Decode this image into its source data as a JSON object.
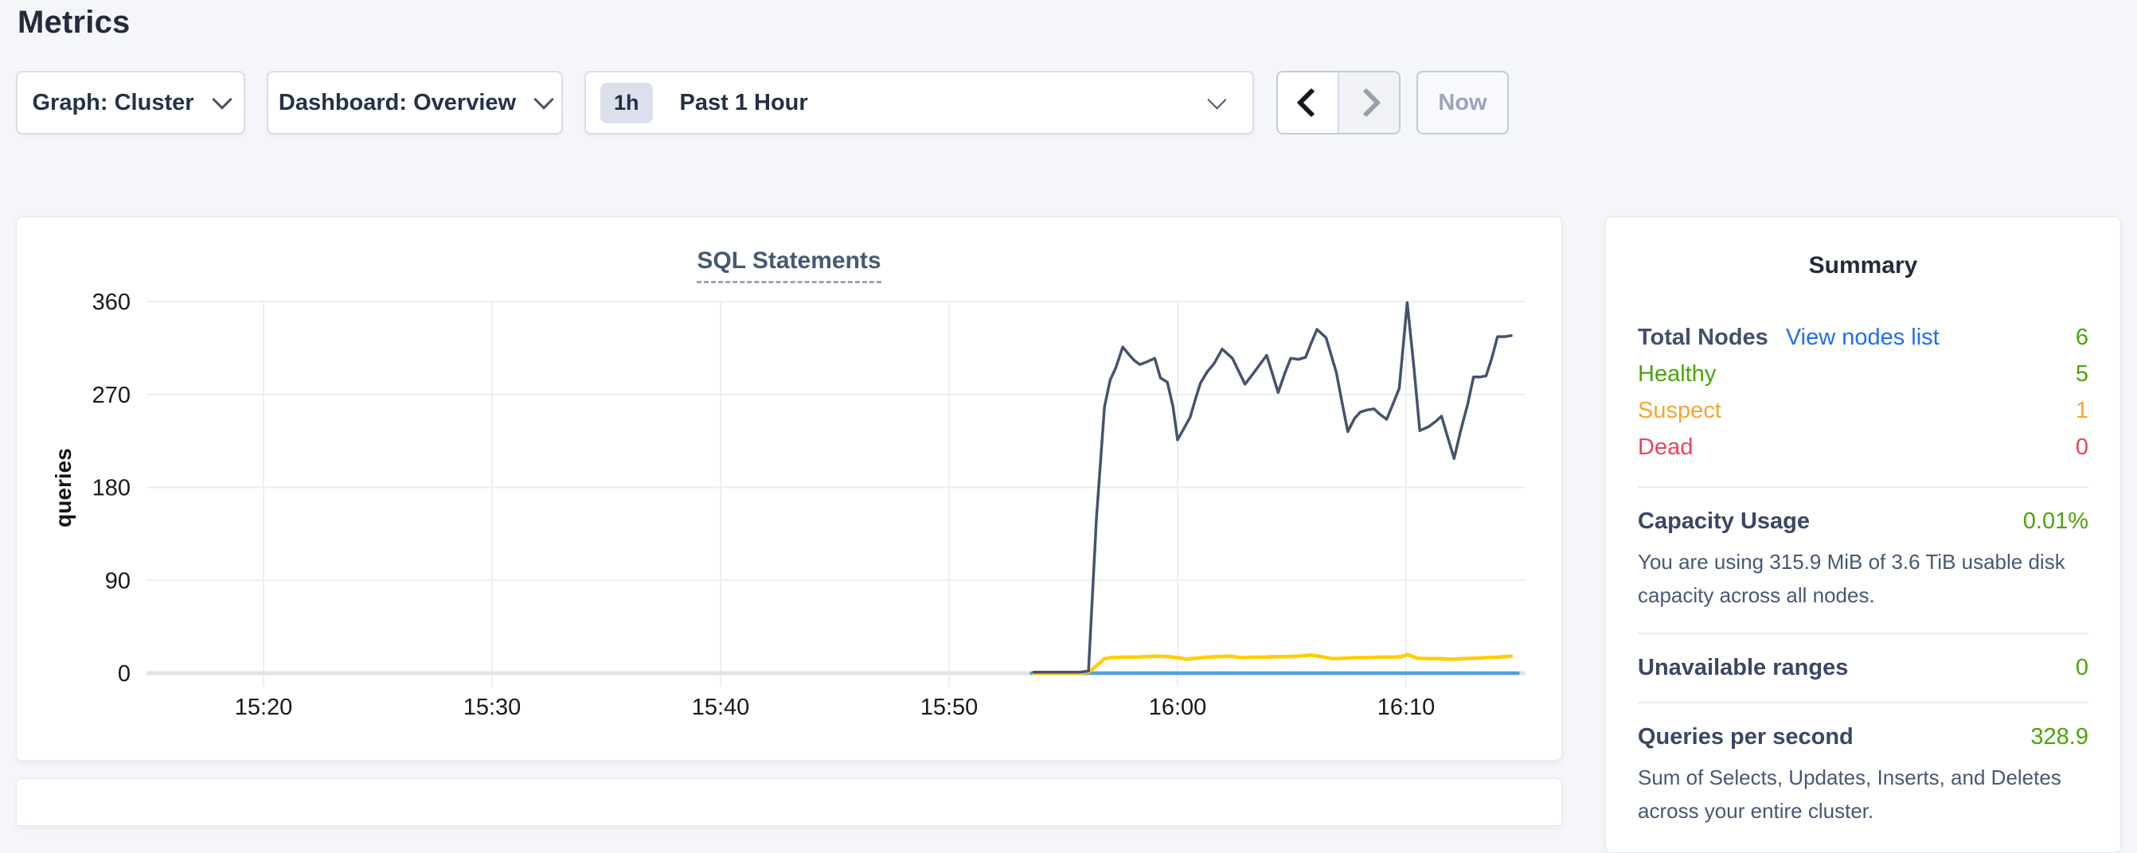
{
  "page": {
    "title": "Metrics"
  },
  "toolbar": {
    "graph_dropdown": "Graph: Cluster",
    "dashboard_dropdown": "Dashboard: Overview",
    "time_window": {
      "badge": "1h",
      "label": "Past 1 Hour"
    },
    "now_button": "Now"
  },
  "chart_data": {
    "type": "line",
    "title": "SQL Statements",
    "ylabel": "queries",
    "ylim": [
      0,
      360
    ],
    "y_ticks": [
      0,
      90,
      180,
      270,
      360
    ],
    "x_ticks": [
      "15:20",
      "15:30",
      "15:40",
      "15:50",
      "16:00",
      "16:10"
    ],
    "x_tick_minutes": [
      -40,
      -30,
      -20,
      -10,
      0,
      10
    ],
    "grid": true,
    "legend": "none",
    "x_unit": "minutes relative to 16:00",
    "series": [
      {
        "name": "series-blue-flat",
        "color": "#57a0d5",
        "stroke_width": 4.5,
        "points": [
          [
            -6.4,
            0
          ],
          [
            14.9,
            0
          ]
        ]
      },
      {
        "name": "series-yellow",
        "color": "#ffcd00",
        "stroke_width": 4.5,
        "points": [
          [
            -6.3,
            0
          ],
          [
            -5.9,
            0
          ],
          [
            -5.5,
            0
          ],
          [
            -5.1,
            0
          ],
          [
            -4.7,
            0
          ],
          [
            -4.3,
            0
          ],
          [
            -3.9,
            1
          ],
          [
            -3.5,
            8
          ],
          [
            -3.2,
            14
          ],
          [
            -2.9,
            15
          ],
          [
            -2.4,
            15.5
          ],
          [
            -1.9,
            15.5
          ],
          [
            -1.4,
            16
          ],
          [
            -0.9,
            16.5
          ],
          [
            -0.4,
            16
          ],
          [
            0,
            15
          ],
          [
            0.4,
            13.5
          ],
          [
            0.8,
            14.5
          ],
          [
            1.3,
            15.5
          ],
          [
            1.8,
            16
          ],
          [
            2.3,
            16.5
          ],
          [
            2.8,
            15
          ],
          [
            3.3,
            15.5
          ],
          [
            3.8,
            15.5
          ],
          [
            4.3,
            16
          ],
          [
            4.8,
            16
          ],
          [
            5.3,
            16.5
          ],
          [
            5.8,
            17.5
          ],
          [
            6.3,
            16
          ],
          [
            6.8,
            14
          ],
          [
            7.3,
            14.5
          ],
          [
            7.8,
            15
          ],
          [
            8.3,
            15
          ],
          [
            8.8,
            15.5
          ],
          [
            9.3,
            15.5
          ],
          [
            9.8,
            16
          ],
          [
            10.05,
            18
          ],
          [
            10.5,
            14.5
          ],
          [
            11,
            14
          ],
          [
            11.5,
            14
          ],
          [
            12,
            13.5
          ],
          [
            12.5,
            14
          ],
          [
            13,
            14.5
          ],
          [
            13.5,
            15
          ],
          [
            14,
            15.5
          ],
          [
            14.6,
            16.5
          ]
        ]
      },
      {
        "name": "series-navy",
        "color": "#45536e",
        "stroke_width": 3.5,
        "points": [
          [
            -6.3,
            1
          ],
          [
            -5.9,
            1
          ],
          [
            -5.5,
            1
          ],
          [
            -5.1,
            1
          ],
          [
            -4.7,
            1
          ],
          [
            -4.3,
            1
          ],
          [
            -3.9,
            2
          ],
          [
            -3.55,
            150
          ],
          [
            -3.2,
            258
          ],
          [
            -2.95,
            284
          ],
          [
            -2.7,
            296
          ],
          [
            -2.4,
            316
          ],
          [
            -2.1,
            308
          ],
          [
            -1.9,
            303
          ],
          [
            -1.65,
            299
          ],
          [
            -1.3,
            302
          ],
          [
            -1,
            305
          ],
          [
            -0.75,
            286
          ],
          [
            -0.45,
            282
          ],
          [
            -0.2,
            258
          ],
          [
            0,
            226
          ],
          [
            0.3,
            238
          ],
          [
            0.55,
            248
          ],
          [
            0.8,
            267
          ],
          [
            1,
            281
          ],
          [
            1.3,
            292
          ],
          [
            1.6,
            300
          ],
          [
            1.95,
            314
          ],
          [
            2.4,
            305
          ],
          [
            2.95,
            280
          ],
          [
            3.3,
            290
          ],
          [
            3.6,
            299
          ],
          [
            3.9,
            308
          ],
          [
            4.15,
            290
          ],
          [
            4.4,
            272
          ],
          [
            4.7,
            291
          ],
          [
            4.95,
            305
          ],
          [
            5.3,
            304
          ],
          [
            5.6,
            306
          ],
          [
            5.85,
            320
          ],
          [
            6.1,
            333
          ],
          [
            6.5,
            325
          ],
          [
            6.95,
            291
          ],
          [
            7.2,
            262
          ],
          [
            7.45,
            234
          ],
          [
            7.75,
            247
          ],
          [
            8,
            253
          ],
          [
            8.3,
            255
          ],
          [
            8.6,
            256
          ],
          [
            8.9,
            250
          ],
          [
            9.15,
            246
          ],
          [
            9.45,
            262
          ],
          [
            9.7,
            276
          ],
          [
            10.05,
            359
          ],
          [
            10.35,
            295
          ],
          [
            10.6,
            235
          ],
          [
            10.8,
            237
          ],
          [
            11,
            239
          ],
          [
            11.3,
            244
          ],
          [
            11.55,
            249
          ],
          [
            11.8,
            230
          ],
          [
            12.1,
            208
          ],
          [
            12.4,
            236
          ],
          [
            12.7,
            261
          ],
          [
            12.95,
            287
          ],
          [
            13.25,
            287
          ],
          [
            13.5,
            288
          ],
          [
            13.75,
            305
          ],
          [
            14,
            326
          ],
          [
            14.3,
            326
          ],
          [
            14.6,
            327
          ]
        ]
      }
    ]
  },
  "summary": {
    "title": "Summary",
    "total_nodes": {
      "label": "Total Nodes",
      "link": "View nodes list",
      "value": "6"
    },
    "healthy": {
      "label": "Healthy",
      "value": "5"
    },
    "suspect": {
      "label": "Suspect",
      "value": "1"
    },
    "dead": {
      "label": "Dead",
      "value": "0"
    },
    "capacity": {
      "label": "Capacity Usage",
      "value": "0.01%",
      "description": "You are using 315.9 MiB of 3.6 TiB usable disk capacity across all nodes."
    },
    "unavailable_ranges": {
      "label": "Unavailable ranges",
      "value": "0"
    },
    "qps": {
      "label": "Queries per second",
      "value": "328.9",
      "description": "Sum of Selects, Updates, Inserts, and Deletes across your entire cluster."
    }
  },
  "colors": {
    "link_blue": "#1e6ef5",
    "status_green": "#4aa408",
    "status_orange": "#f7a432",
    "status_red": "#ef4156",
    "line_navy": "#45536e",
    "line_yellow": "#ffcd00",
    "line_blue": "#57a0d5"
  }
}
